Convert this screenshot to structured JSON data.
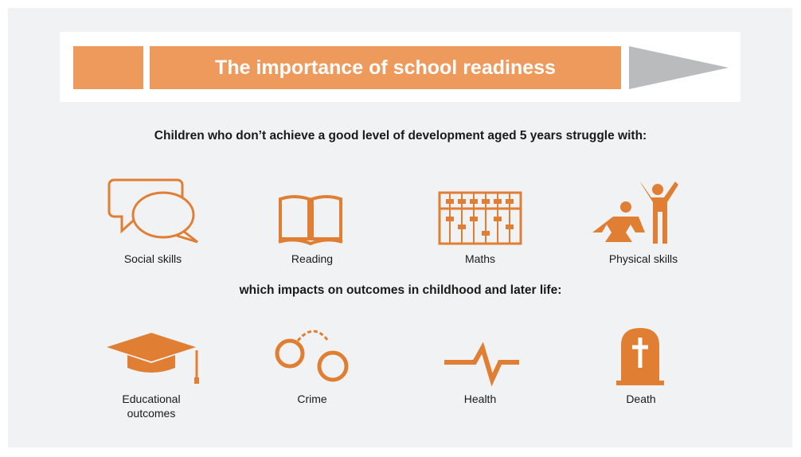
{
  "header": {
    "title": "The importance of school readiness"
  },
  "intro": "Children who don’t achieve a good level of development aged 5 years struggle with:",
  "struggles": [
    {
      "label": "Social skills"
    },
    {
      "label": "Reading"
    },
    {
      "label": "Maths"
    },
    {
      "label": "Physical skills"
    }
  ],
  "impact": "which impacts on outcomes in childhood and later life:",
  "outcomes": [
    {
      "label": "Educational outcomes"
    },
    {
      "label": "Crime"
    },
    {
      "label": "Health"
    },
    {
      "label": "Death"
    }
  ]
}
